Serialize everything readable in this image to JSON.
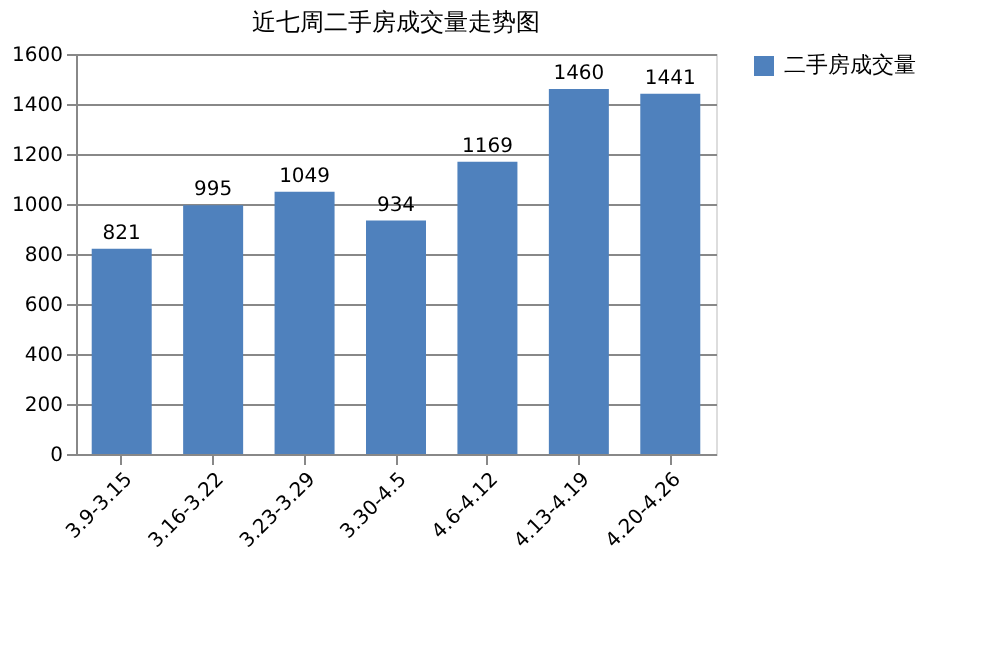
{
  "chart_data": {
    "type": "bar",
    "title": "近七周二手房成交量走势图",
    "categories": [
      "3.9-3.15",
      "3.16-3.22",
      "3.23-3.29",
      "3.30-4.5",
      "4.6-4.12",
      "4.13-4.19",
      "4.20-4.26"
    ],
    "series": [
      {
        "name": "二手房成交量",
        "color": "#4f81bd",
        "values": [
          821,
          995,
          1049,
          934,
          1169,
          1460,
          1441
        ]
      }
    ],
    "ylim": [
      0,
      1600
    ],
    "yticks": [
      0,
      200,
      400,
      600,
      800,
      1000,
      1200,
      1400,
      1600
    ],
    "grid": "y",
    "legend": "right",
    "data_labels": true
  }
}
